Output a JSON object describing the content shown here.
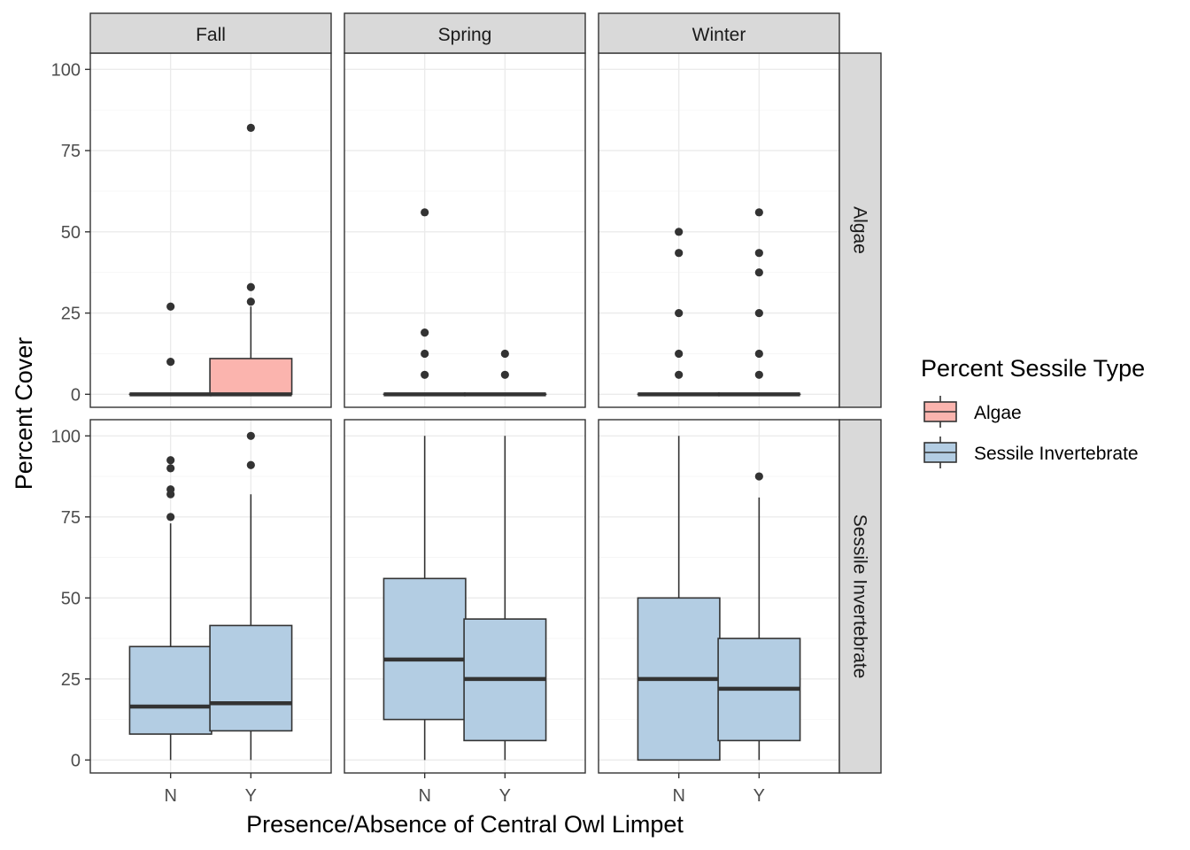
{
  "chart_data": {
    "type": "boxplot",
    "xlabel": "Presence/Absence of Central Owl Limpet",
    "ylabel": "Percent Cover",
    "col_facets": [
      "Fall",
      "Spring",
      "Winter"
    ],
    "row_facets": [
      "Algae",
      "Sessile Invertebrate"
    ],
    "categories": [
      "N",
      "Y"
    ],
    "yticks": [
      0,
      25,
      50,
      75,
      100
    ],
    "ylim": [
      -4,
      105
    ],
    "grid": true,
    "legend": {
      "title": "Percent Sessile Type",
      "position": "right",
      "items": [
        {
          "label": "Algae",
          "fill": "#fbb4ae"
        },
        {
          "label": "Sessile Invertebrate",
          "fill": "#b3cde3"
        }
      ]
    },
    "colors": {
      "algae_fill": "#fbb4ae",
      "invert_fill": "#b3cde3",
      "box_line": "#333333",
      "strip_fill": "#d9d9d9",
      "panel_border": "#333333"
    },
    "panels": [
      {
        "row": "Algae",
        "col": "Fall",
        "boxes": [
          {
            "x": "N",
            "lower": 0,
            "q1": 0,
            "median": 0,
            "q3": 0,
            "upper": 0,
            "outliers": [
              10,
              27
            ]
          },
          {
            "x": "Y",
            "lower": 0,
            "q1": 0,
            "median": 0,
            "q3": 11,
            "upper": 27,
            "outliers": [
              28.5,
              33,
              82
            ]
          }
        ]
      },
      {
        "row": "Algae",
        "col": "Spring",
        "boxes": [
          {
            "x": "N",
            "lower": 0,
            "q1": 0,
            "median": 0,
            "q3": 0,
            "upper": 0,
            "outliers": [
              6,
              12.5,
              19,
              56
            ]
          },
          {
            "x": "Y",
            "lower": 0,
            "q1": 0,
            "median": 0,
            "q3": 0,
            "upper": 0,
            "outliers": [
              6,
              12.5
            ]
          }
        ]
      },
      {
        "row": "Algae",
        "col": "Winter",
        "boxes": [
          {
            "x": "N",
            "lower": 0,
            "q1": 0,
            "median": 0,
            "q3": 0,
            "upper": 0,
            "outliers": [
              6,
              12.5,
              25,
              43.5,
              50
            ]
          },
          {
            "x": "Y",
            "lower": 0,
            "q1": 0,
            "median": 0,
            "q3": 0,
            "upper": 0,
            "outliers": [
              6,
              12.5,
              25,
              37.5,
              43.5,
              56
            ]
          }
        ]
      },
      {
        "row": "Sessile Invertebrate",
        "col": "Fall",
        "boxes": [
          {
            "x": "N",
            "lower": 0,
            "q1": 8,
            "median": 16.5,
            "q3": 35,
            "upper": 73,
            "outliers": [
              75,
              82,
              83.5,
              90,
              92.5
            ]
          },
          {
            "x": "Y",
            "lower": 0,
            "q1": 9,
            "median": 17.5,
            "q3": 41.5,
            "upper": 82,
            "outliers": [
              91,
              100
            ]
          }
        ]
      },
      {
        "row": "Sessile Invertebrate",
        "col": "Spring",
        "boxes": [
          {
            "x": "N",
            "lower": 0,
            "q1": 12.5,
            "median": 31,
            "q3": 56,
            "upper": 100,
            "outliers": []
          },
          {
            "x": "Y",
            "lower": 0,
            "q1": 6,
            "median": 25,
            "q3": 43.5,
            "upper": 100,
            "outliers": []
          }
        ]
      },
      {
        "row": "Sessile Invertebrate",
        "col": "Winter",
        "boxes": [
          {
            "x": "N",
            "lower": 0,
            "q1": 0,
            "median": 25,
            "q3": 50,
            "upper": 100,
            "outliers": []
          },
          {
            "x": "Y",
            "lower": 0,
            "q1": 6,
            "median": 22,
            "q3": 37.5,
            "upper": 81,
            "outliers": [
              87.5
            ]
          }
        ]
      }
    ]
  }
}
